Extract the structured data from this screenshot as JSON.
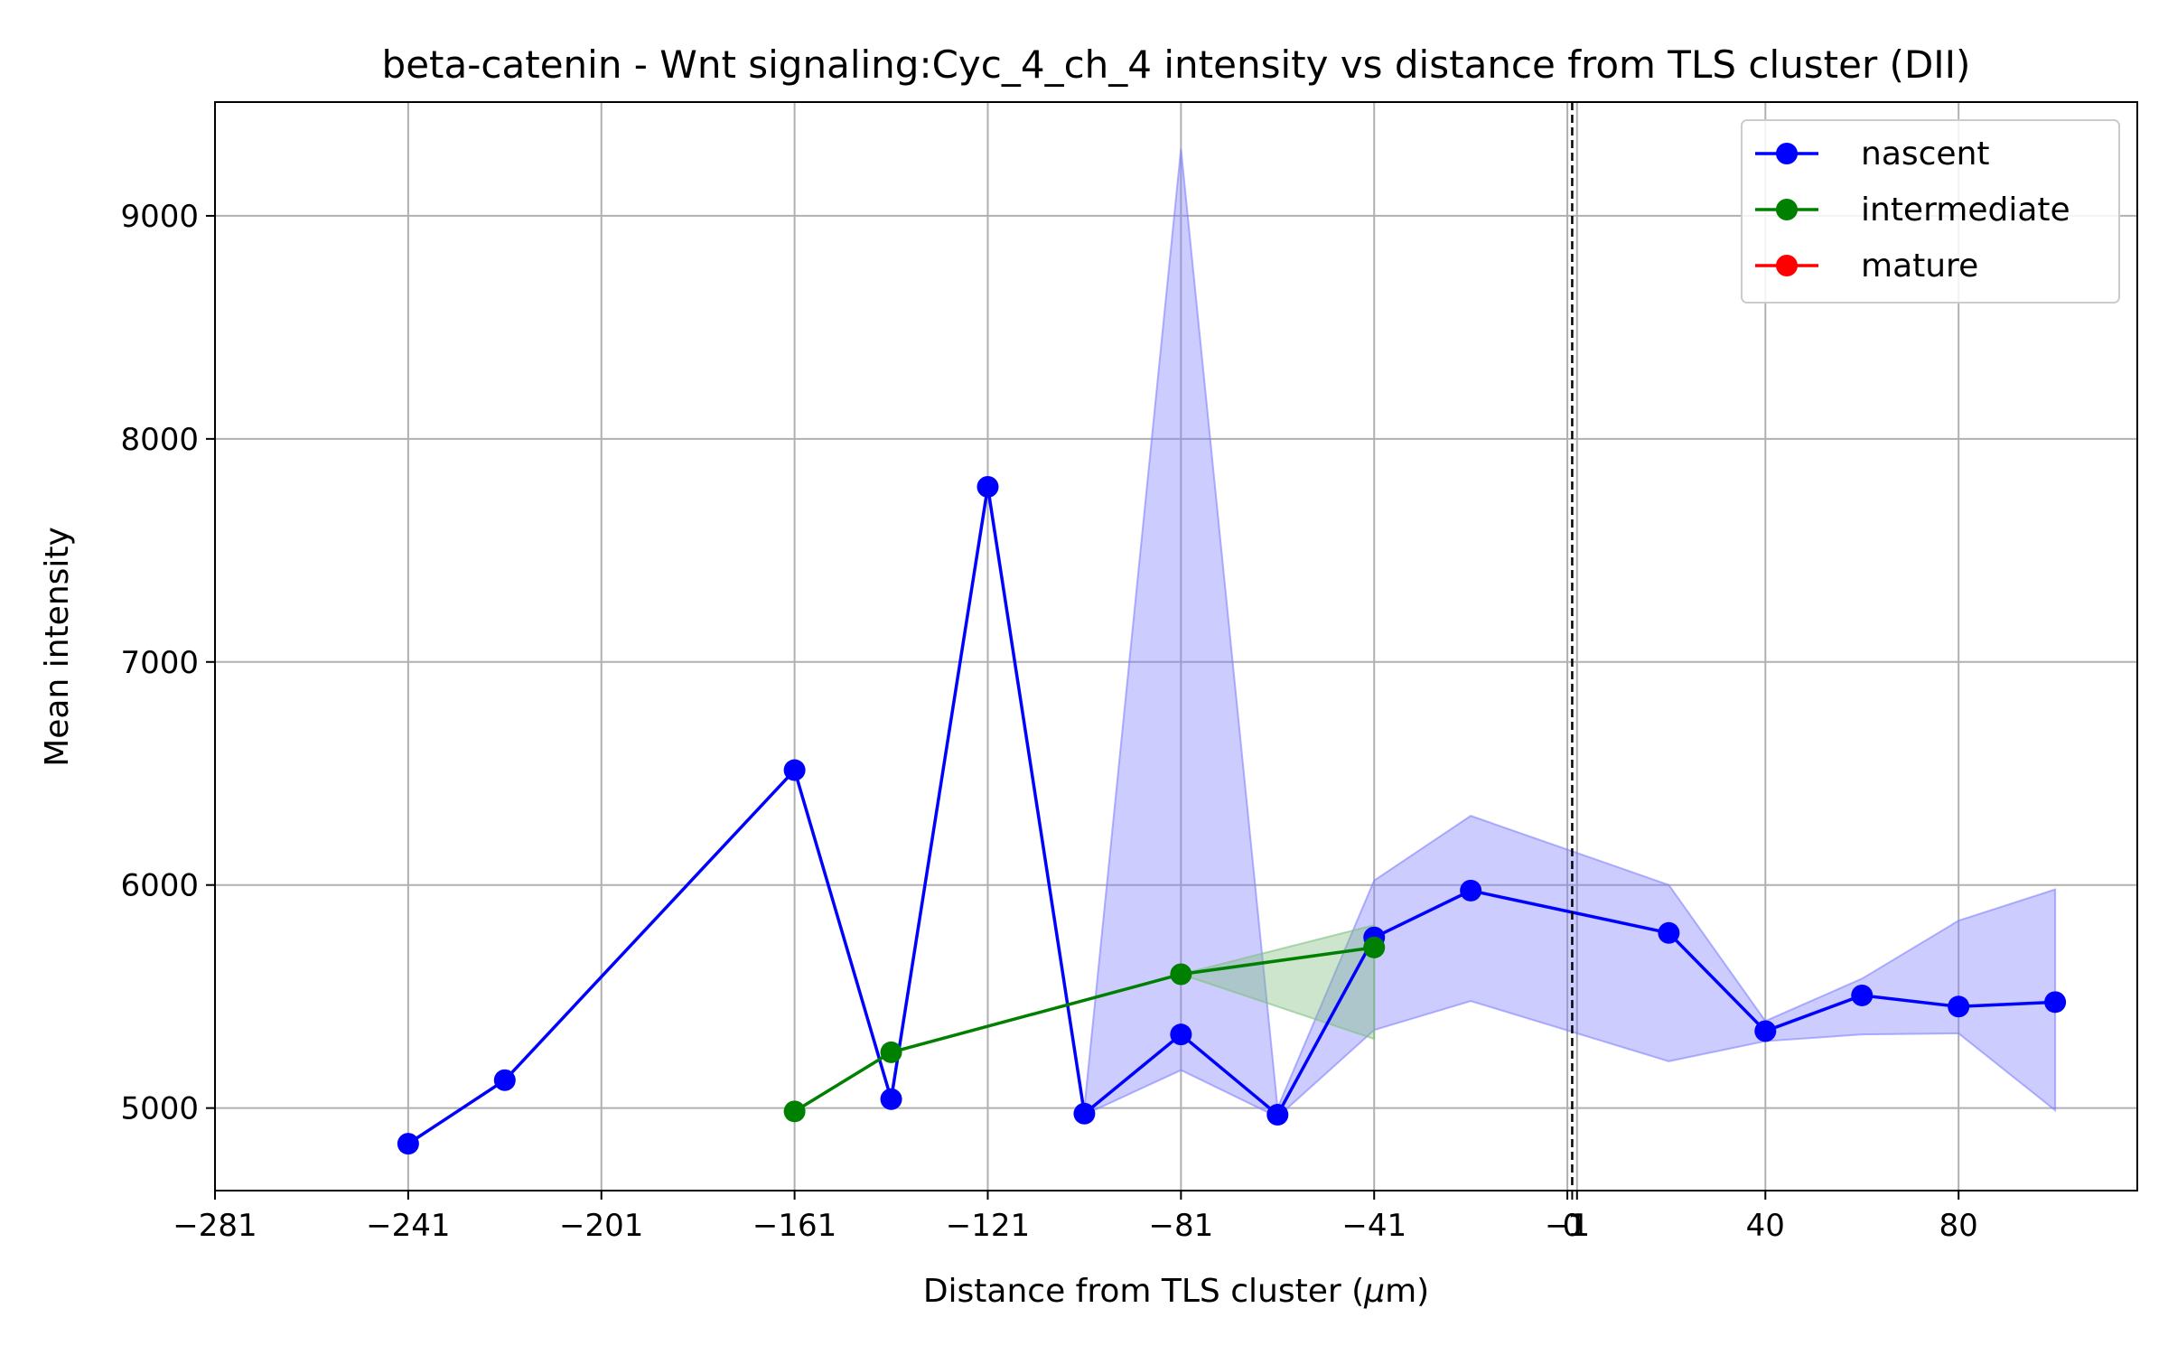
{
  "chart_data": {
    "type": "line",
    "title": "beta-catenin - Wnt signaling:Cyc_4_ch_4 intensity vs distance from TLS cluster (DII)",
    "xlabel_main": "Distance from TLS cluster (",
    "xlabel_mu": "μ",
    "xlabel_unit": "m)",
    "ylabel": "Mean intensity",
    "xlim": [
      -281,
      117
    ],
    "ylim": [
      4630,
      9510
    ],
    "x_ticks": [
      {
        "value": -281,
        "label": "−281"
      },
      {
        "value": -241,
        "label": "−241"
      },
      {
        "value": -201,
        "label": "−201"
      },
      {
        "value": -161,
        "label": "−161"
      },
      {
        "value": -121,
        "label": "−121"
      },
      {
        "value": -81,
        "label": "−81"
      },
      {
        "value": -41,
        "label": "−41"
      },
      {
        "value": -1,
        "label": "−1"
      },
      {
        "value": 0,
        "label": "0"
      },
      {
        "value": 1,
        "label": "1"
      },
      {
        "value": 40,
        "label": "40"
      },
      {
        "value": 80,
        "label": "80"
      }
    ],
    "x_grid": [
      -281,
      -241,
      -201,
      -161,
      -121,
      -81,
      -41,
      -1,
      1,
      40,
      80
    ],
    "y_ticks": [
      {
        "value": 5000,
        "label": "5000"
      },
      {
        "value": 6000,
        "label": "6000"
      },
      {
        "value": 7000,
        "label": "7000"
      },
      {
        "value": 8000,
        "label": "8000"
      },
      {
        "value": 9000,
        "label": "9000"
      }
    ],
    "vline": 0,
    "grid": true,
    "legend_position": "top-right",
    "series": [
      {
        "name": "nascent",
        "color": "#0000ff",
        "band_color": "#8080ff",
        "x": [
          -241,
          -221,
          -161,
          -141,
          -121,
          -101,
          -81,
          -61,
          -41,
          -21,
          20,
          40,
          60,
          80,
          100
        ],
        "y": [
          4840,
          5125,
          6515,
          5040,
          7785,
          4975,
          5330,
          4970,
          5765,
          5975,
          5785,
          5345,
          5505,
          5455,
          5475
        ],
        "band": {
          "x": [
            -101,
            -81,
            -61,
            -41,
            -21,
            20,
            40,
            60,
            80,
            100
          ],
          "upper": [
            5000,
            9300,
            5000,
            6020,
            6310,
            6000,
            5390,
            5580,
            5840,
            5980
          ],
          "lower": [
            4970,
            5170,
            4960,
            5350,
            5480,
            5210,
            5300,
            5330,
            5335,
            4990
          ]
        }
      },
      {
        "name": "intermediate",
        "color": "#008000",
        "band_color": "#7fbf7f",
        "x": [
          -161,
          -141,
          -81,
          -41
        ],
        "y": [
          4985,
          5250,
          5600,
          5720
        ],
        "band": {
          "x": [
            -81,
            -41
          ],
          "upper": [
            5600,
            5820
          ],
          "lower": [
            5600,
            5310
          ]
        }
      },
      {
        "name": "mature",
        "color": "#ff0000",
        "x": [],
        "y": []
      }
    ]
  }
}
